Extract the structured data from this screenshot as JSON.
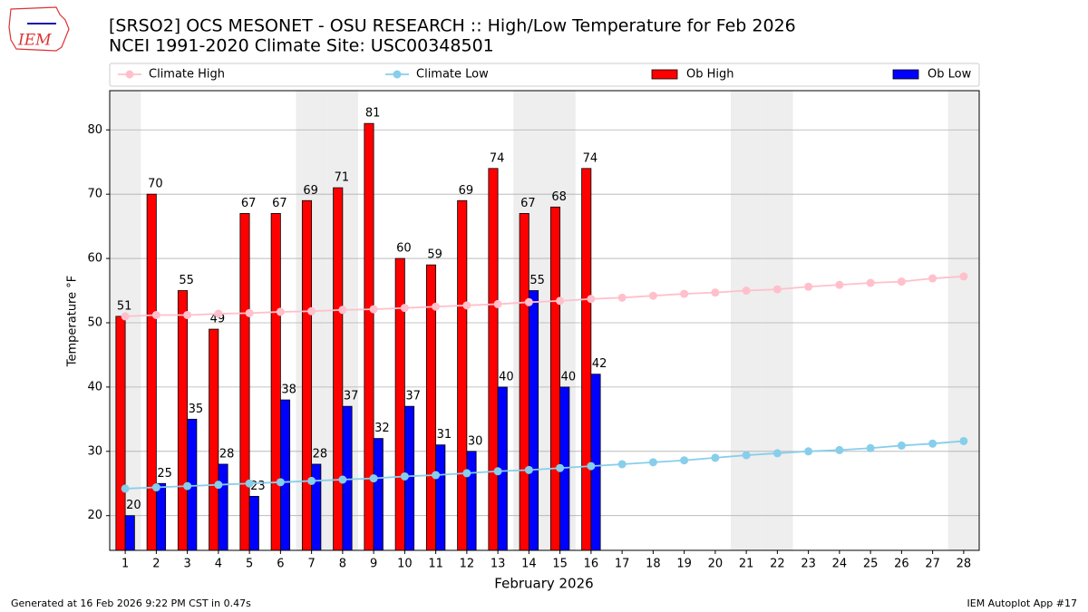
{
  "logo_text": "IEM",
  "chart_data": {
    "type": "bar",
    "title": "[SRSO2] OCS MESONET - OSU RESEARCH :: High/Low Temperature for Feb 2026",
    "subtitle": "NCEI 1991-2020 Climate Site: USC00348501",
    "x_label": "February 2026",
    "y_label": "Temperature °F",
    "footer_left": "Generated at 16 Feb 2026 9:22 PM CST in 0.47s",
    "footer_right": "IEM Autoplot App #17",
    "x": [
      1,
      2,
      3,
      4,
      5,
      6,
      7,
      8,
      9,
      10,
      11,
      12,
      13,
      14,
      15,
      16,
      17,
      18,
      19,
      20,
      21,
      22,
      23,
      24,
      25,
      26,
      27,
      28
    ],
    "xlim": [
      0.5,
      28.5
    ],
    "xticks": [
      1,
      2,
      3,
      4,
      5,
      6,
      7,
      8,
      9,
      10,
      11,
      12,
      13,
      14,
      15,
      16,
      17,
      18,
      19,
      20,
      21,
      22,
      23,
      24,
      25,
      26,
      27,
      28
    ],
    "ylim": [
      14.6,
      86.1
    ],
    "yticks": [
      20,
      30,
      40,
      50,
      60,
      70,
      80
    ],
    "grid": true,
    "legend": "top",
    "shaded_x": [
      1,
      7,
      8,
      14,
      15,
      21,
      22,
      28
    ],
    "shade_color": "#eeeeee",
    "series": [
      {
        "name": "Climate High",
        "kind": "line",
        "color": "#ffc0cb",
        "values": [
          51.0,
          51.2,
          51.2,
          51.4,
          51.5,
          51.7,
          51.8,
          52.0,
          52.1,
          52.3,
          52.5,
          52.7,
          52.9,
          53.2,
          53.4,
          53.7,
          53.9,
          54.2,
          54.5,
          54.7,
          55.0,
          55.2,
          55.6,
          55.9,
          56.2,
          56.4,
          56.9,
          57.2
        ]
      },
      {
        "name": "Climate Low",
        "kind": "line",
        "color": "#87ceeb",
        "values": [
          24.2,
          24.4,
          24.6,
          24.8,
          25.0,
          25.2,
          25.4,
          25.6,
          25.8,
          26.1,
          26.3,
          26.6,
          26.9,
          27.1,
          27.4,
          27.7,
          28.0,
          28.3,
          28.6,
          29.0,
          29.4,
          29.7,
          30.0,
          30.2,
          30.5,
          30.9,
          31.2,
          31.6
        ]
      },
      {
        "name": "Ob High",
        "kind": "bar",
        "color": "#ff0000",
        "values": [
          51,
          70,
          55,
          49,
          67,
          67,
          69,
          71,
          81,
          60,
          59,
          69,
          74,
          67,
          68,
          74,
          null,
          null,
          null,
          null,
          null,
          null,
          null,
          null,
          null,
          null,
          null,
          null
        ]
      },
      {
        "name": "Ob Low",
        "kind": "bar",
        "color": "#0000ff",
        "values": [
          20,
          25,
          35,
          28,
          23,
          38,
          28,
          37,
          32,
          37,
          31,
          30,
          40,
          55,
          40,
          42,
          null,
          null,
          null,
          null,
          null,
          null,
          null,
          null,
          null,
          null,
          null,
          null
        ]
      }
    ]
  }
}
